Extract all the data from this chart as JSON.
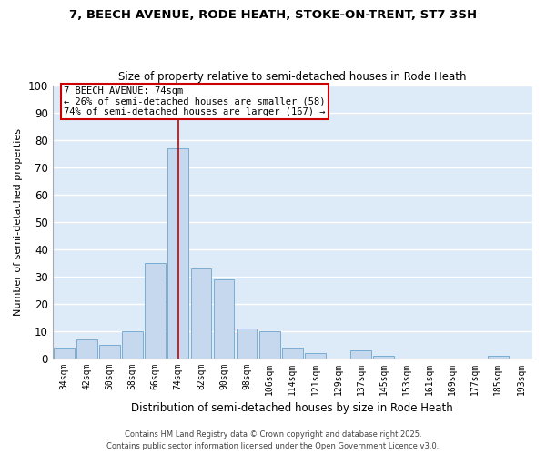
{
  "title": "7, BEECH AVENUE, RODE HEATH, STOKE-ON-TRENT, ST7 3SH",
  "subtitle": "Size of property relative to semi-detached houses in Rode Heath",
  "xlabel": "Distribution of semi-detached houses by size in Rode Heath",
  "ylabel": "Number of semi-detached properties",
  "bin_labels": [
    "34sqm",
    "42sqm",
    "50sqm",
    "58sqm",
    "66sqm",
    "74sqm",
    "82sqm",
    "90sqm",
    "98sqm",
    "106sqm",
    "114sqm",
    "121sqm",
    "129sqm",
    "137sqm",
    "145sqm",
    "153sqm",
    "161sqm",
    "169sqm",
    "177sqm",
    "185sqm",
    "193sqm"
  ],
  "bar_values": [
    4,
    7,
    5,
    10,
    35,
    77,
    33,
    29,
    11,
    10,
    4,
    2,
    0,
    3,
    1,
    0,
    0,
    0,
    0,
    1,
    0
  ],
  "bar_color": "#c5d8ee",
  "bar_edge_color": "#7aadd4",
  "background_color": "#ddeaf8",
  "grid_color": "#ffffff",
  "pct_smaller": 26,
  "pct_larger": 74,
  "n_smaller": 58,
  "n_larger": 167,
  "vline_color": "#cc0000",
  "annotation_box_color": "#ffffff",
  "annotation_box_edge": "#cc0000",
  "ylim": [
    0,
    100
  ],
  "yticks": [
    0,
    10,
    20,
    30,
    40,
    50,
    60,
    70,
    80,
    90,
    100
  ],
  "footer1": "Contains HM Land Registry data © Crown copyright and database right 2025.",
  "footer2": "Contains public sector information licensed under the Open Government Licence v3.0."
}
